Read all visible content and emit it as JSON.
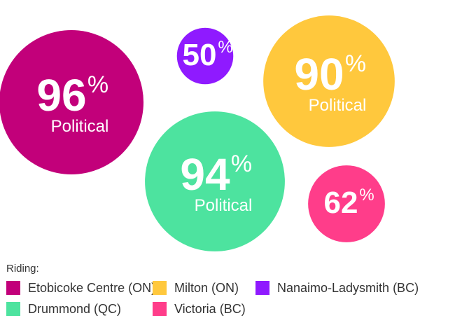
{
  "chart_data": {
    "type": "bubble",
    "unit_label": "%",
    "series": [
      {
        "name": "Etobicoke Centre (ON)",
        "value": 96,
        "label": "Political",
        "color": "#c2007a"
      },
      {
        "name": "Nanaimo-Ladysmith (BC)",
        "value": 50,
        "label": "",
        "color": "#8f1aff"
      },
      {
        "name": "Milton (ON)",
        "value": 90,
        "label": "Political",
        "color": "#ffc83d"
      },
      {
        "name": "Drummond (QC)",
        "value": 94,
        "label": "Political",
        "color": "#4de39f"
      },
      {
        "name": "Victoria (BC)",
        "value": 62,
        "label": "",
        "color": "#ff3d8a"
      }
    ]
  },
  "legend": {
    "title": "Riding:",
    "items": [
      {
        "label": "Etobicoke Centre (ON)",
        "color": "#c2007a"
      },
      {
        "label": "Milton (ON)",
        "color": "#ffc83d"
      },
      {
        "label": "Nanaimo-Ladysmith (BC)",
        "color": "#8f1aff"
      },
      {
        "label": "Drummond (QC)",
        "color": "#4de39f"
      },
      {
        "label": "Victoria (BC)",
        "color": "#ff3d8a"
      }
    ]
  }
}
